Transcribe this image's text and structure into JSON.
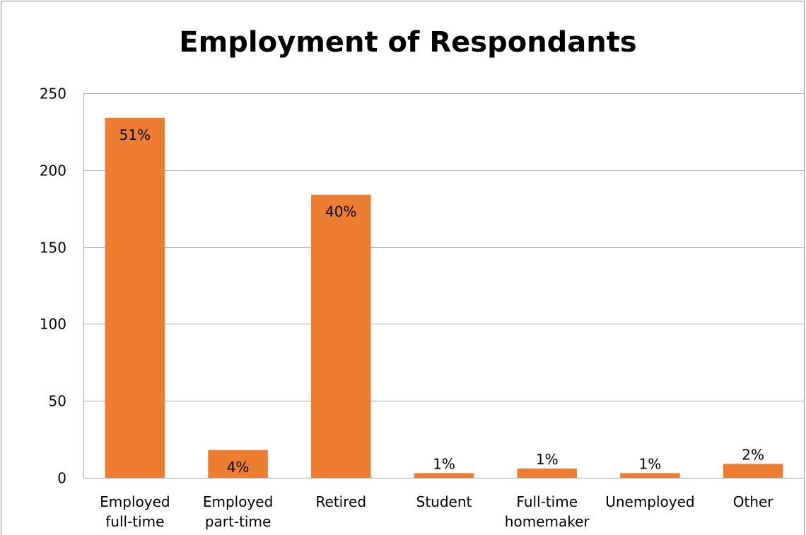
{
  "chart_data": {
    "type": "bar",
    "title": "Employment of Respondants",
    "xlabel": "",
    "ylabel": "",
    "categories": [
      [
        "Employed",
        "full-time"
      ],
      [
        "Employed",
        "part-time"
      ],
      [
        "Retired"
      ],
      [
        "Student"
      ],
      [
        "Full-time",
        "homemaker"
      ],
      [
        "Unemployed"
      ],
      [
        "Other"
      ]
    ],
    "values": [
      234,
      18,
      184,
      3,
      6,
      3,
      9
    ],
    "data_labels": [
      "51%",
      "4%",
      "40%",
      "1%",
      "1%",
      "1%",
      "2%"
    ],
    "ylim": [
      0,
      250
    ],
    "yticks": [
      0,
      50,
      100,
      150,
      200,
      250
    ],
    "grid": true,
    "legend": "none",
    "bar_color": "#ED7D31",
    "gridline_color": "#A6A6A6"
  }
}
